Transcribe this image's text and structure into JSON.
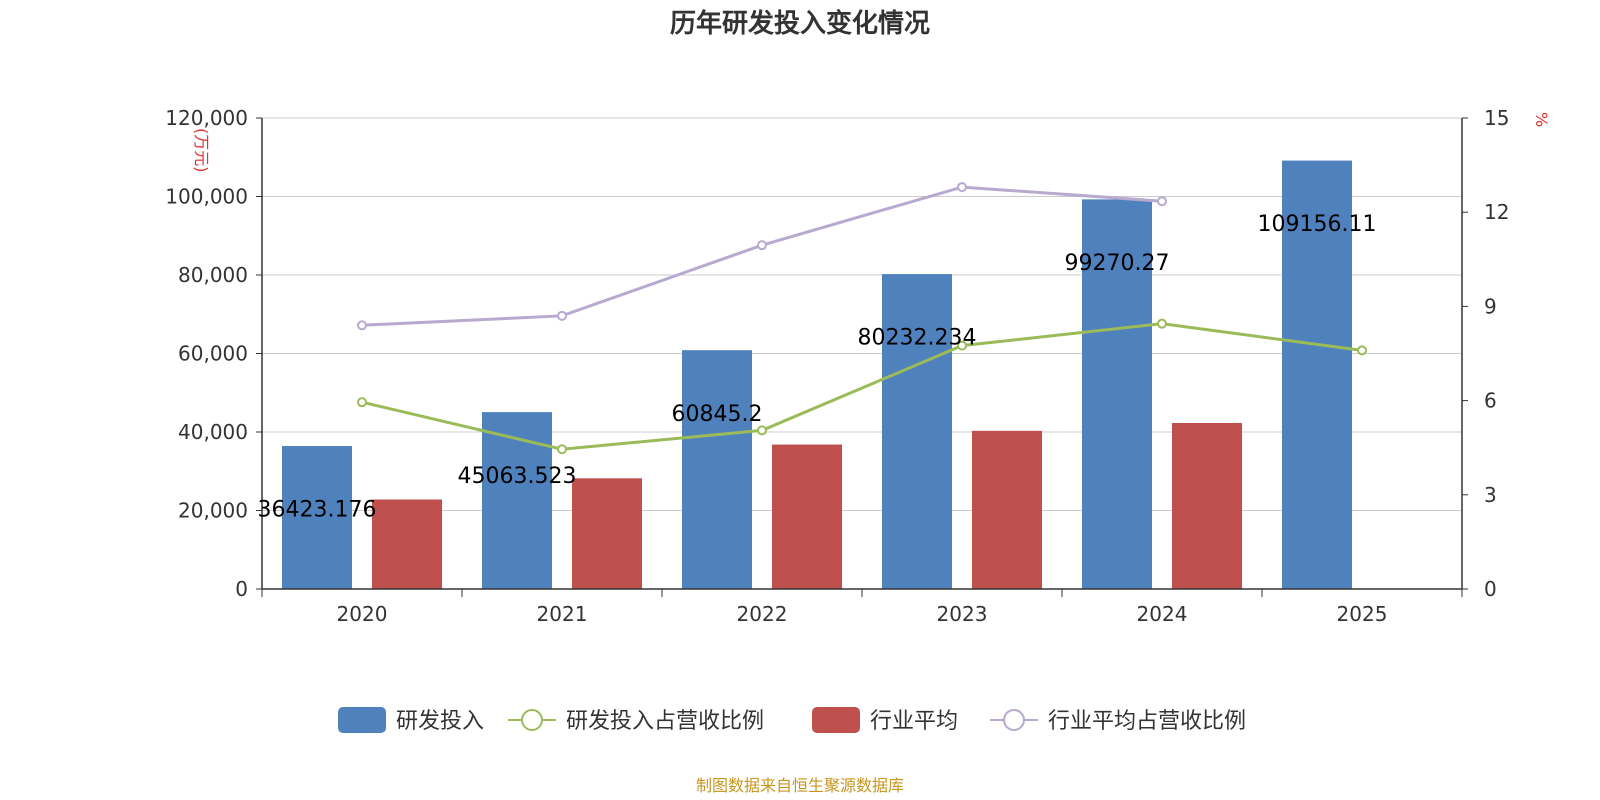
{
  "chart_data": {
    "type": "bar",
    "title": "历年研发投入变化情况",
    "categories": [
      "2020",
      "2021",
      "2022",
      "2023",
      "2024",
      "2025"
    ],
    "y_left": {
      "label": "万元",
      "range": [
        0,
        120000
      ],
      "ticks": [
        "0",
        "20,000",
        "40,000",
        "60,000",
        "80,000",
        "100,000",
        "120,000"
      ]
    },
    "y_right": {
      "label": "%",
      "range": [
        0,
        15
      ],
      "ticks": [
        "0",
        "3",
        "6",
        "9",
        "12",
        "15"
      ]
    },
    "series": [
      {
        "name": "研发投入",
        "kind": "bar",
        "axis": "left",
        "color": "#4f81bd",
        "values": [
          36423.176,
          45063.523,
          60845.2,
          80232.234,
          99270.27,
          109156.11
        ],
        "labels": [
          "36423.176",
          "45063.523",
          "60845.2",
          "80232.234",
          "99270.27",
          "109156.11"
        ]
      },
      {
        "name": "研发投入占营收比例",
        "kind": "line",
        "axis": "right",
        "color": "#9bbb59",
        "values": [
          5.95,
          4.45,
          5.05,
          7.75,
          8.45,
          7.6
        ]
      },
      {
        "name": "行业平均",
        "kind": "bar",
        "axis": "left",
        "color": "#c0504d",
        "values": [
          22800,
          28200,
          36800,
          40300,
          42300,
          null
        ]
      },
      {
        "name": "行业平均占营收比例",
        "kind": "line",
        "axis": "right",
        "color": "#b7a9cf",
        "values": [
          8.4,
          8.7,
          10.95,
          12.8,
          12.35,
          null
        ]
      }
    ],
    "legend": {
      "position": "bottom"
    },
    "grid": true
  },
  "source": "制图数据来自恒生聚源数据库"
}
